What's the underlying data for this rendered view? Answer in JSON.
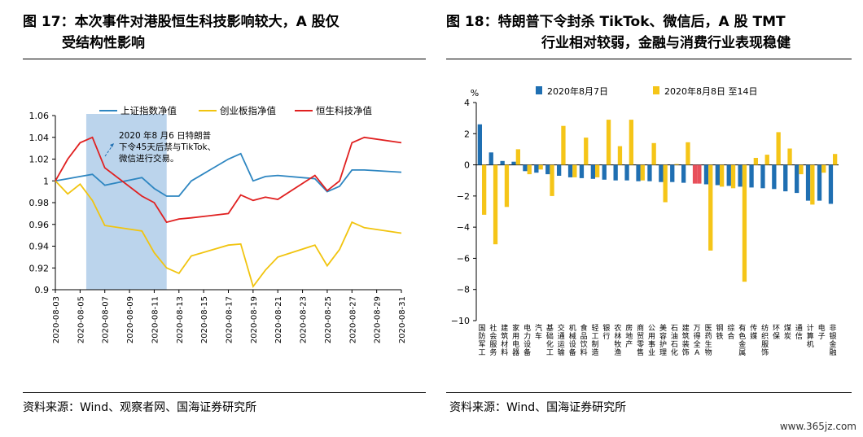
{
  "figure17": {
    "title_line1": "图 17：本次事件对港股恒生科技影响较大，A 股仅",
    "title_line2": "受结构性影响",
    "source": "资料来源：Wind、观察者网、国海证券研究所",
    "chart_data": {
      "type": "line",
      "x": [
        "2020-08-03",
        "2020-08-04",
        "2020-08-05",
        "2020-08-06",
        "2020-08-07",
        "2020-08-10",
        "2020-08-11",
        "2020-08-12",
        "2020-08-13",
        "2020-08-14",
        "2020-08-17",
        "2020-08-18",
        "2020-08-19",
        "2020-08-20",
        "2020-08-21",
        "2020-08-24",
        "2020-08-25",
        "2020-08-26",
        "2020-08-27",
        "2020-08-28",
        "2020-08-31"
      ],
      "x_tick_labels": [
        "2020-08-03",
        "2020-08-05",
        "2020-08-07",
        "2020-08-09",
        "2020-08-11",
        "2020-08-13",
        "2020-08-15",
        "2020-08-17",
        "2020-08-19",
        "2020-08-21",
        "2020-08-23",
        "2020-08-25",
        "2020-08-27",
        "2020-08-29",
        "2020-08-31"
      ],
      "ylim": [
        0.9,
        1.06
      ],
      "y_ticks": [
        "0.9",
        "0.92",
        "0.94",
        "0.96",
        "0.98",
        "1",
        "1.02",
        "1.04",
        "1.06"
      ],
      "series": [
        {
          "name": "上证指数净值",
          "color": "#2E86C1",
          "values": [
            1.0,
            1.002,
            1.004,
            1.006,
            0.996,
            1.003,
            0.993,
            0.986,
            0.986,
            1.0,
            1.02,
            1.025,
            1.0,
            1.004,
            1.005,
            1.002,
            0.99,
            0.995,
            1.01,
            1.01,
            1.008
          ]
        },
        {
          "name": "创业板指净值",
          "color": "#F1C40F",
          "values": [
            1.0,
            0.988,
            0.997,
            0.982,
            0.959,
            0.954,
            0.934,
            0.92,
            0.915,
            0.931,
            0.941,
            0.942,
            0.903,
            0.918,
            0.93,
            0.941,
            0.922,
            0.937,
            0.962,
            0.957,
            0.952
          ]
        },
        {
          "name": "恒生科技净值",
          "color": "#E02020",
          "values": [
            1.0,
            1.02,
            1.035,
            1.04,
            1.012,
            0.986,
            0.98,
            0.962,
            0.965,
            0.966,
            0.97,
            0.987,
            0.982,
            0.985,
            0.983,
            1.005,
            0.991,
            1.0,
            1.035,
            1.04,
            1.035
          ]
        }
      ],
      "shaded_region": {
        "from": "2020-08-06",
        "to": "2020-08-12"
      },
      "annotation_line1": "2020 年8 月6 日特朗普",
      "annotation_line2": "下令45天后禁与TikTok、",
      "annotation_line3": "微信进行交易。"
    }
  },
  "figure18": {
    "title_line1": "图 18：特朗普下令封杀 TikTok、微信后，A 股 TMT",
    "title_line2": "行业相对较弱，金融与消费行业表现稳健",
    "source": "资料来源：Wind、国海证券研究所",
    "chart_data": {
      "type": "bar",
      "ylabel": "%",
      "ylim": [
        -10,
        4
      ],
      "y_ticks": [
        "−10",
        "−8",
        "−6",
        "−4",
        "−2",
        "0",
        "2",
        "4"
      ],
      "categories": [
        "国防军工",
        "社会服务",
        "建筑材料",
        "家用电器",
        "电力设备",
        "汽车",
        "基础化工",
        "交通运输",
        "机械设备",
        "食品饮料",
        "轻工制造",
        "银行",
        "农林牧渔",
        "房地产",
        "商贸零售",
        "公用事业",
        "美容护理",
        "石油石化",
        "建筑装饰",
        "万得全A",
        "医药生物",
        "钢铁",
        "综合",
        "有色金属",
        "传媒",
        "纺织服饰",
        "环保",
        "煤炭",
        "通信",
        "计算机",
        "电子",
        "非银金融"
      ],
      "series": [
        {
          "name": "2020年8月7日",
          "color": "#1F6FB2",
          "values": [
            2.6,
            0.8,
            0.25,
            0.2,
            -0.4,
            -0.5,
            -0.6,
            -0.7,
            -0.8,
            -0.85,
            -0.9,
            -0.95,
            -1.0,
            -1.0,
            -1.05,
            -1.05,
            -1.1,
            -1.1,
            -1.15,
            -1.2,
            -1.25,
            -1.3,
            -1.35,
            -1.4,
            -1.45,
            -1.5,
            -1.55,
            -1.7,
            -1.8,
            -2.3,
            -2.3,
            -2.5
          ]
        },
        {
          "name": "2020年8月8日 至14日",
          "color": "#F5C518",
          "values": [
            -3.2,
            -5.1,
            -2.7,
            1.0,
            -0.6,
            -0.3,
            -2.0,
            2.5,
            -0.8,
            1.75,
            -0.8,
            2.9,
            1.2,
            2.9,
            -1.0,
            1.4,
            -2.4,
            0.05,
            1.45,
            -1.2,
            -5.5,
            -1.4,
            -1.5,
            -7.5,
            0.45,
            0.65,
            2.1,
            1.05,
            -0.6,
            -2.55,
            -0.5,
            0.7
          ]
        }
      ],
      "highlight_category": "万得全A",
      "highlight_color": "#E8505B"
    }
  },
  "watermark": "www.365jz.com"
}
